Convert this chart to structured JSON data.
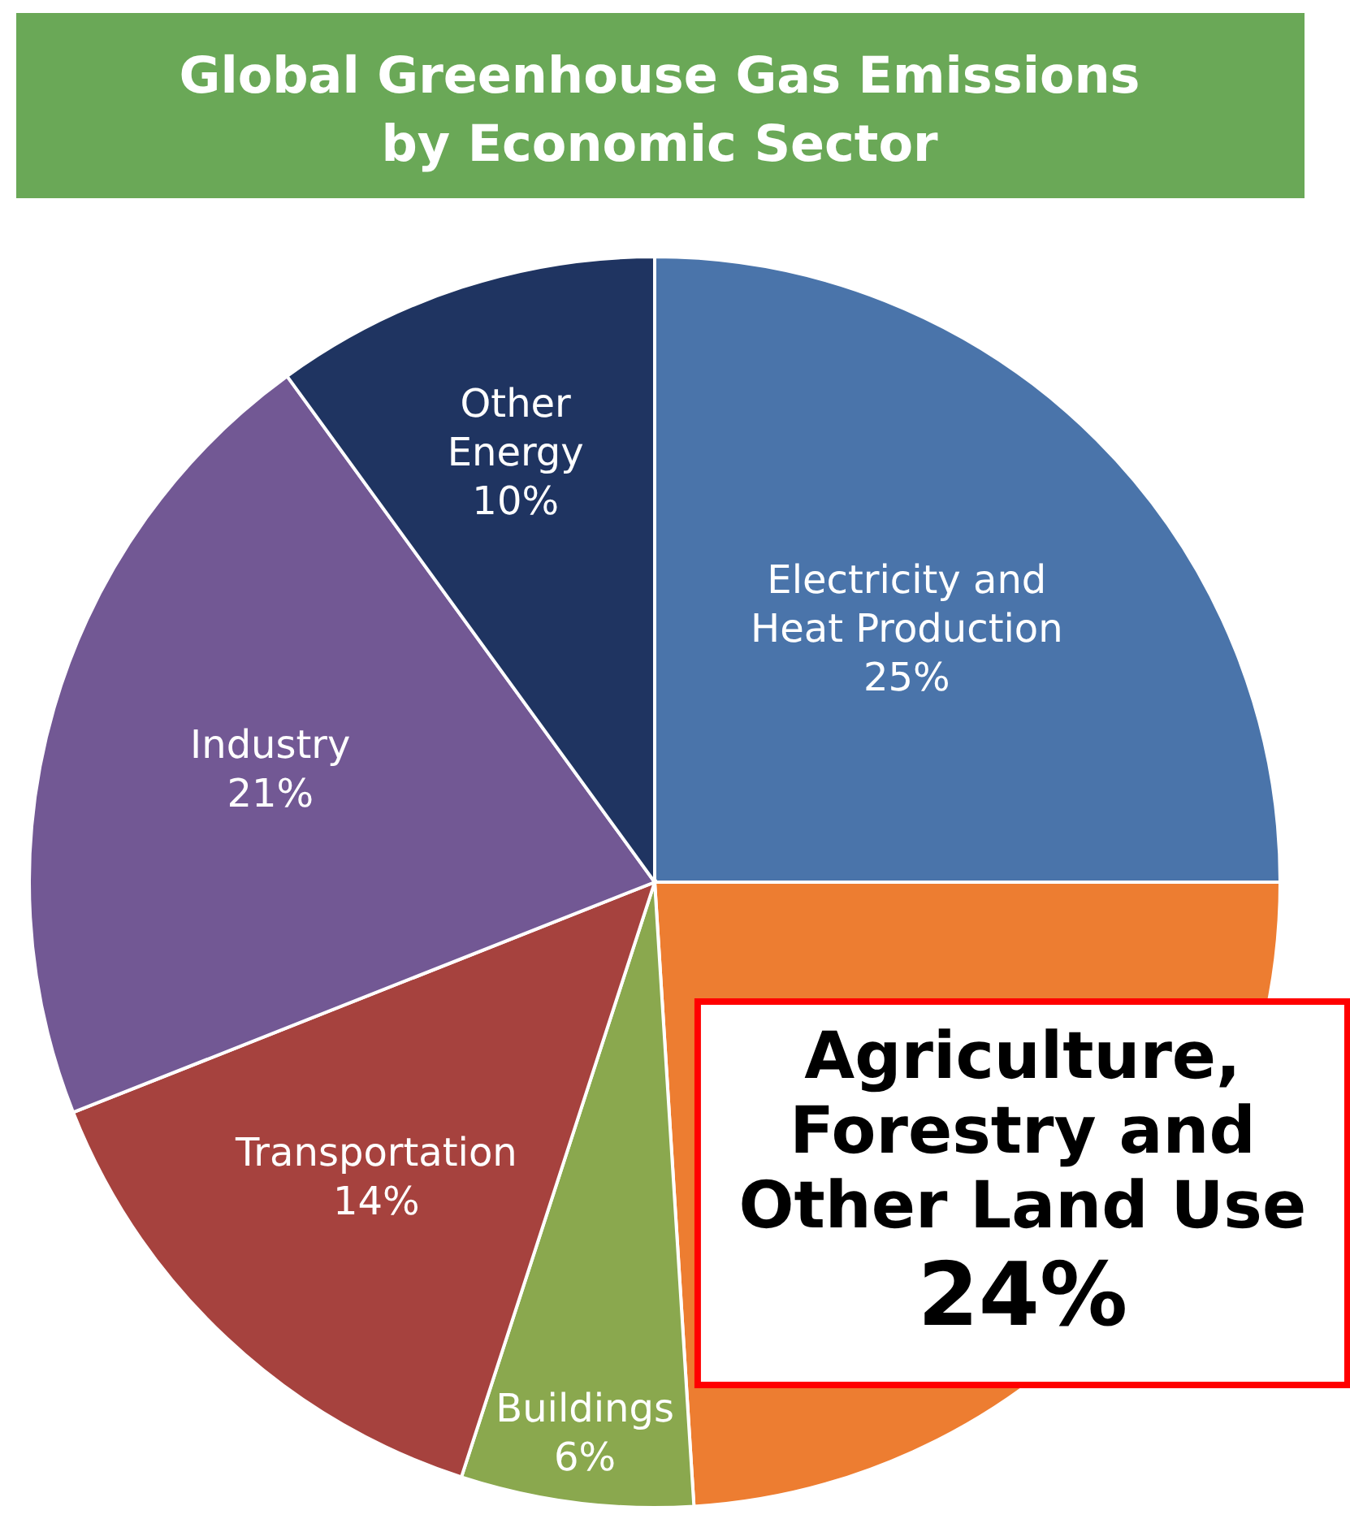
{
  "chart_data": {
    "type": "pie",
    "title": "Global Greenhouse Gas Emissions by Economic Sector",
    "categories": [
      "Electricity and Heat Production",
      "Agriculture, Forestry and Other Land Use",
      "Buildings",
      "Transportation",
      "Industry",
      "Other Energy"
    ],
    "values": [
      25,
      24,
      6,
      14,
      21,
      10
    ],
    "value_labels": [
      "25%",
      "24%",
      "6%",
      "14%",
      "21%",
      "10%"
    ],
    "colors": [
      "#4a74aa",
      "#ed7d31",
      "#8aa84e",
      "#a6423e",
      "#725894",
      "#1f3461"
    ]
  }
}
